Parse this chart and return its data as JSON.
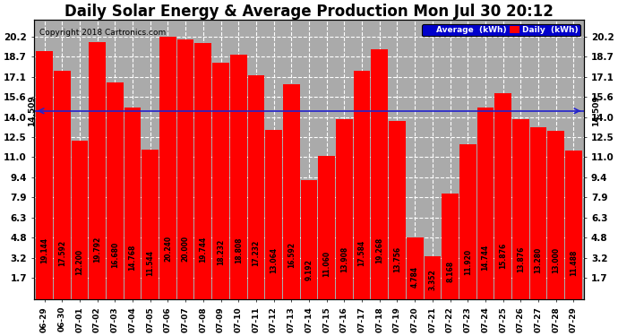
{
  "title": "Daily Solar Energy & Average Production Mon Jul 30 20:12",
  "copyright": "Copyright 2018 Cartronics.com",
  "average_label": "14.509",
  "average_value": 14.509,
  "categories": [
    "06-29",
    "06-30",
    "07-01",
    "07-02",
    "07-03",
    "07-04",
    "07-05",
    "07-06",
    "07-07",
    "07-08",
    "07-09",
    "07-10",
    "07-11",
    "07-12",
    "07-13",
    "07-14",
    "07-15",
    "07-16",
    "07-17",
    "07-18",
    "07-19",
    "07-20",
    "07-21",
    "07-22",
    "07-23",
    "07-24",
    "07-25",
    "07-26",
    "07-27",
    "07-28",
    "07-29"
  ],
  "values": [
    19.144,
    17.592,
    12.2,
    19.792,
    16.68,
    14.768,
    11.544,
    20.24,
    20.0,
    19.744,
    18.232,
    18.808,
    17.232,
    13.064,
    16.592,
    9.192,
    11.06,
    13.908,
    17.584,
    19.268,
    13.756,
    4.784,
    3.352,
    8.168,
    11.92,
    14.744,
    15.876,
    13.876,
    13.28,
    13.0,
    11.488
  ],
  "bar_color": "#ff0000",
  "avg_line_color": "#2222cc",
  "background_color": "#ffffff",
  "plot_bg_color": "#aaaaaa",
  "grid_color": "#ffffff",
  "ylim": [
    0,
    21.5
  ],
  "yticks": [
    1.7,
    3.2,
    4.8,
    6.3,
    7.9,
    9.4,
    11.0,
    12.5,
    14.0,
    15.6,
    17.1,
    18.7,
    20.2
  ],
  "legend_avg_color": "#0000cc",
  "legend_daily_color": "#ff0000",
  "legend_avg_text": "Average  (kWh)",
  "legend_daily_text": "Daily  (kWh)",
  "title_fontsize": 12,
  "bar_label_fontsize": 5.5,
  "tick_fontsize": 7.5
}
